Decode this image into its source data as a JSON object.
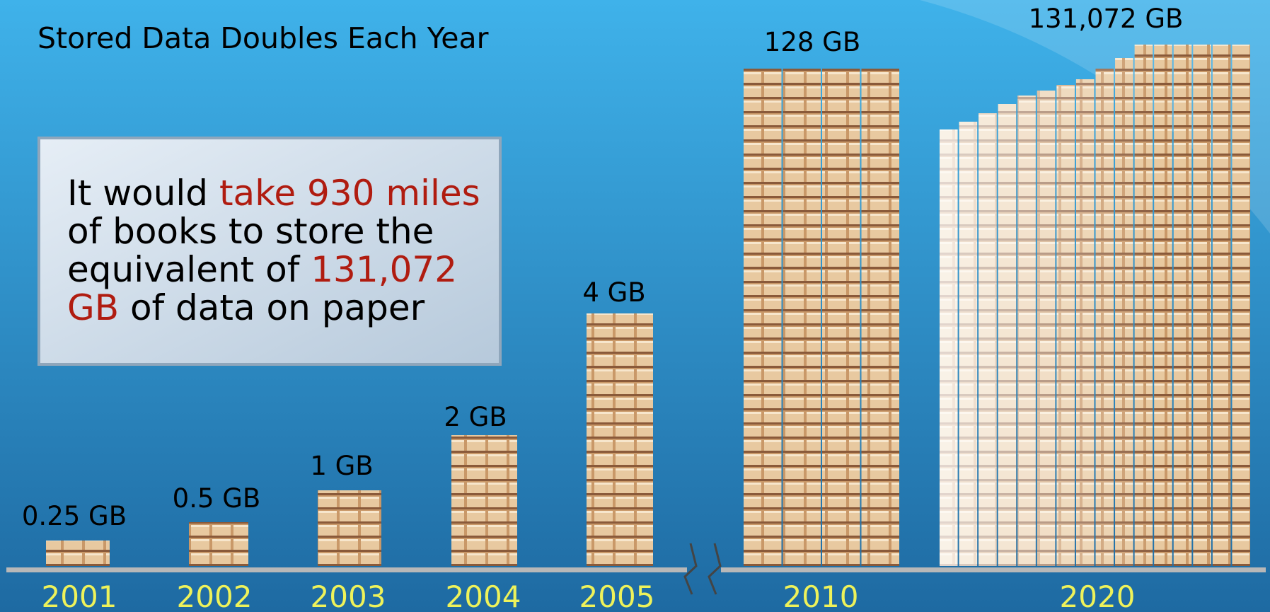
{
  "title": "Stored Data Doubles Each Year",
  "callout": {
    "lines": [
      [
        {
          "text": "It would ",
          "emphasis": false
        },
        {
          "text": "take 930 miles",
          "emphasis": true
        }
      ],
      [
        {
          "text": "of books to store the",
          "emphasis": false
        }
      ],
      [
        {
          "text": "equivalent of ",
          "emphasis": false
        },
        {
          "text": "131,072",
          "emphasis": true
        }
      ],
      [
        {
          "text": "GB",
          "emphasis": true
        },
        {
          "text": " of data on paper",
          "emphasis": false
        }
      ]
    ]
  },
  "items": [
    {
      "year": "2001",
      "label": "0.25 GB"
    },
    {
      "year": "2002",
      "label": "0.5 GB"
    },
    {
      "year": "2003",
      "label": "1 GB"
    },
    {
      "year": "2004",
      "label": "2 GB"
    },
    {
      "year": "2005",
      "label": "4 GB"
    },
    {
      "year": "2010",
      "label": "128 GB"
    },
    {
      "year": "2020",
      "label": "131,072 GB"
    }
  ]
}
